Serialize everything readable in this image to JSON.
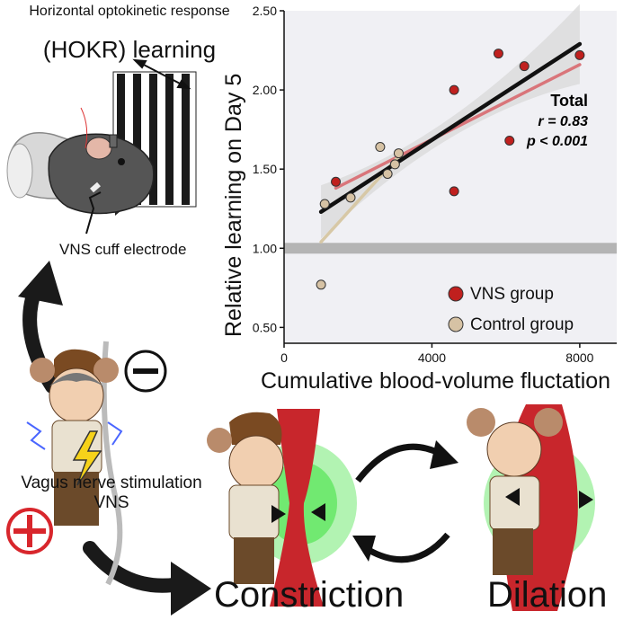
{
  "panel_title": {
    "line1": "Horizontal optokinetic response",
    "line2": "(HOKR) learning"
  },
  "labels": {
    "vns_cuff": "VNS cuff electrode",
    "vns_stim_line1": "Vagus nerve stimulation",
    "vns_stim_line2": "VNS",
    "constriction": "Constriction",
    "dilation": "Dilation",
    "minus_sign": "−",
    "plus_sign": "+"
  },
  "colors": {
    "vns_point": "#c0201e",
    "control_point": "#d6c2a4",
    "total_fit": "#111111",
    "vns_fit": "#d9757a",
    "control_fit": "#d7c8a6",
    "baseline_band": "#b4b4b4",
    "confidence_band": "#dcdcdc",
    "plot_background": "#f0f0f4",
    "vessel": "#c8262c",
    "glow": "#22dd22"
  },
  "chart_data": {
    "type": "scatter",
    "title": "",
    "xlabel": "Cumulative blood-volume fluctation",
    "ylabel": "Relative learning on Day 5",
    "xlim": [
      0,
      9000
    ],
    "ylim": [
      0.4,
      2.5
    ],
    "xticks": [
      "0",
      "4000",
      "8000"
    ],
    "xtick_values": [
      0,
      4000,
      8000
    ],
    "yticks": [
      "0.50",
      "1.00",
      "1.50",
      "2.00",
      "2.50"
    ],
    "ytick_values": [
      0.5,
      1.0,
      1.5,
      2.0,
      2.5
    ],
    "baseline": 1.0,
    "annotation": {
      "title": "Total",
      "r": "r = 0.83",
      "p": "p < 0.001"
    },
    "legend_position": "bottom-right",
    "series": [
      {
        "name": "VNS group",
        "points": [
          [
            1400,
            1.42
          ],
          [
            4600,
            1.36
          ],
          [
            4600,
            2.0
          ],
          [
            5800,
            2.23
          ],
          [
            6100,
            1.68
          ],
          [
            6500,
            2.15
          ],
          [
            8000,
            2.22
          ]
        ]
      },
      {
        "name": "Control group",
        "points": [
          [
            1000,
            0.77
          ],
          [
            1100,
            1.28
          ],
          [
            1800,
            1.32
          ],
          [
            2600,
            1.64
          ],
          [
            2800,
            1.47
          ],
          [
            3000,
            1.53
          ],
          [
            3100,
            1.6
          ]
        ]
      }
    ],
    "fits": [
      {
        "name": "Total",
        "x": [
          1000,
          8000
        ],
        "y": [
          1.23,
          2.29
        ]
      },
      {
        "name": "VNS",
        "x": [
          1400,
          8000
        ],
        "y": [
          1.38,
          2.16
        ]
      },
      {
        "name": "Control",
        "x": [
          1000,
          3100
        ],
        "y": [
          1.04,
          1.58
        ]
      }
    ]
  }
}
